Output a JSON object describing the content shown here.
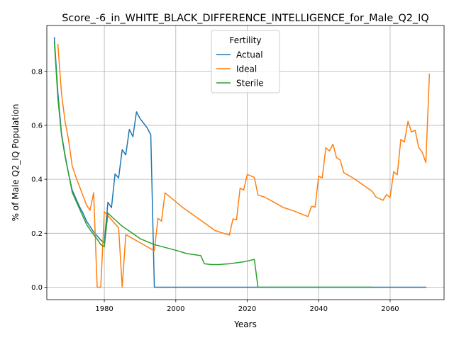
{
  "chart_data": {
    "type": "line",
    "title": "Score_-6_in_WHITE_BLACK_DIFFERENCE_INTELLIGENCE_for_Male_Q2_IQ",
    "xlabel": "Years",
    "ylabel": "% of Male Q2_IQ Population",
    "xlim": [
      1963.9,
      2075.1
    ],
    "ylim": [
      -0.046,
      0.97
    ],
    "xticks": [
      1980,
      2000,
      2020,
      2040,
      2060
    ],
    "xtick_labels": [
      "1980",
      "2000",
      "2020",
      "2040",
      "2060"
    ],
    "yticks": [
      0.0,
      0.2,
      0.4,
      0.6,
      0.8
    ],
    "ytick_labels": [
      "0.0",
      "0.2",
      "0.4",
      "0.6",
      "0.8"
    ],
    "grid": true,
    "legend": {
      "title": "Fertility",
      "placement": "upper center"
    },
    "series": [
      {
        "name": "Actual",
        "color": "#1f77b4",
        "points": [
          [
            1966,
            0.925
          ],
          [
            1967,
            0.72
          ],
          [
            1968,
            0.57
          ],
          [
            1969,
            0.49
          ],
          [
            1970,
            0.42
          ],
          [
            1971,
            0.36
          ],
          [
            1972,
            0.33
          ],
          [
            1973,
            0.3
          ],
          [
            1974,
            0.275
          ],
          [
            1975,
            0.245
          ],
          [
            1976,
            0.225
          ],
          [
            1977,
            0.205
          ],
          [
            1978,
            0.19
          ],
          [
            1979,
            0.175
          ],
          [
            1980,
            0.165
          ],
          [
            1981,
            0.315
          ],
          [
            1982,
            0.295
          ],
          [
            1983,
            0.42
          ],
          [
            1984,
            0.405
          ],
          [
            1985,
            0.51
          ],
          [
            1986,
            0.49
          ],
          [
            1987,
            0.585
          ],
          [
            1988,
            0.558
          ],
          [
            1989,
            0.65
          ],
          [
            1990,
            0.625
          ],
          [
            1991,
            0.608
          ],
          [
            1992,
            0.59
          ],
          [
            1993,
            0.565
          ],
          [
            1994,
            0.0
          ],
          [
            2070,
            0.0
          ]
        ]
      },
      {
        "name": "Ideal",
        "color": "#ff7f0e",
        "points": [
          [
            1967,
            0.9
          ],
          [
            1968,
            0.72
          ],
          [
            1969,
            0.615
          ],
          [
            1970,
            0.545
          ],
          [
            1971,
            0.45
          ],
          [
            1972,
            0.41
          ],
          [
            1973,
            0.375
          ],
          [
            1974,
            0.34
          ],
          [
            1975,
            0.305
          ],
          [
            1976,
            0.285
          ],
          [
            1977,
            0.35
          ],
          [
            1978,
            0.0
          ],
          [
            1979,
            0.0
          ],
          [
            1980,
            0.28
          ],
          [
            1981,
            0.265
          ],
          [
            1982,
            0.25
          ],
          [
            1983,
            0.235
          ],
          [
            1984,
            0.22
          ],
          [
            1985,
            0.0
          ],
          [
            1986,
            0.195
          ],
          [
            1988,
            0.18
          ],
          [
            1990,
            0.165
          ],
          [
            1992,
            0.15
          ],
          [
            1994,
            0.135
          ],
          [
            1995,
            0.255
          ],
          [
            1996,
            0.245
          ],
          [
            1997,
            0.35
          ],
          [
            1999,
            0.328
          ],
          [
            2002,
            0.295
          ],
          [
            2007,
            0.248
          ],
          [
            2011,
            0.21
          ],
          [
            2015,
            0.193
          ],
          [
            2016,
            0.253
          ],
          [
            2017,
            0.25
          ],
          [
            2018,
            0.367
          ],
          [
            2019,
            0.36
          ],
          [
            2020,
            0.418
          ],
          [
            2022,
            0.407
          ],
          [
            2023,
            0.342
          ],
          [
            2025,
            0.333
          ],
          [
            2029,
            0.304
          ],
          [
            2030,
            0.296
          ],
          [
            2033,
            0.283
          ],
          [
            2037,
            0.262
          ],
          [
            2038,
            0.3
          ],
          [
            2039,
            0.297
          ],
          [
            2040,
            0.412
          ],
          [
            2041,
            0.405
          ],
          [
            2042,
            0.517
          ],
          [
            2043,
            0.505
          ],
          [
            2044,
            0.53
          ],
          [
            2045,
            0.48
          ],
          [
            2046,
            0.472
          ],
          [
            2047,
            0.425
          ],
          [
            2050,
            0.402
          ],
          [
            2055,
            0.355
          ],
          [
            2056,
            0.335
          ],
          [
            2058,
            0.322
          ],
          [
            2059,
            0.343
          ],
          [
            2060,
            0.333
          ],
          [
            2061,
            0.428
          ],
          [
            2062,
            0.417
          ],
          [
            2063,
            0.548
          ],
          [
            2064,
            0.538
          ],
          [
            2065,
            0.615
          ],
          [
            2066,
            0.575
          ],
          [
            2067,
            0.582
          ],
          [
            2068,
            0.518
          ],
          [
            2069,
            0.5
          ],
          [
            2070,
            0.462
          ],
          [
            2071,
            0.79
          ]
        ]
      },
      {
        "name": "Sterile",
        "color": "#2ca02c",
        "points": [
          [
            1966,
            0.91
          ],
          [
            1967,
            0.7
          ],
          [
            1968,
            0.565
          ],
          [
            1969,
            0.485
          ],
          [
            1970,
            0.42
          ],
          [
            1971,
            0.352
          ],
          [
            1972,
            0.322
          ],
          [
            1973,
            0.292
          ],
          [
            1974,
            0.263
          ],
          [
            1975,
            0.233
          ],
          [
            1976,
            0.213
          ],
          [
            1977,
            0.195
          ],
          [
            1978,
            0.178
          ],
          [
            1979,
            0.158
          ],
          [
            1980,
            0.15
          ],
          [
            1981,
            0.275
          ],
          [
            1982,
            0.262
          ],
          [
            1983,
            0.25
          ],
          [
            1984,
            0.238
          ],
          [
            1985,
            0.226
          ],
          [
            1987,
            0.208
          ],
          [
            1990,
            0.18
          ],
          [
            1994,
            0.158
          ],
          [
            2000,
            0.137
          ],
          [
            2003,
            0.125
          ],
          [
            2007,
            0.117
          ],
          [
            2008,
            0.087
          ],
          [
            2010,
            0.084
          ],
          [
            2012,
            0.084
          ],
          [
            2015,
            0.087
          ],
          [
            2019,
            0.094
          ],
          [
            2022,
            0.103
          ],
          [
            2023,
            0.0
          ],
          [
            2055,
            0.0
          ]
        ]
      }
    ]
  }
}
